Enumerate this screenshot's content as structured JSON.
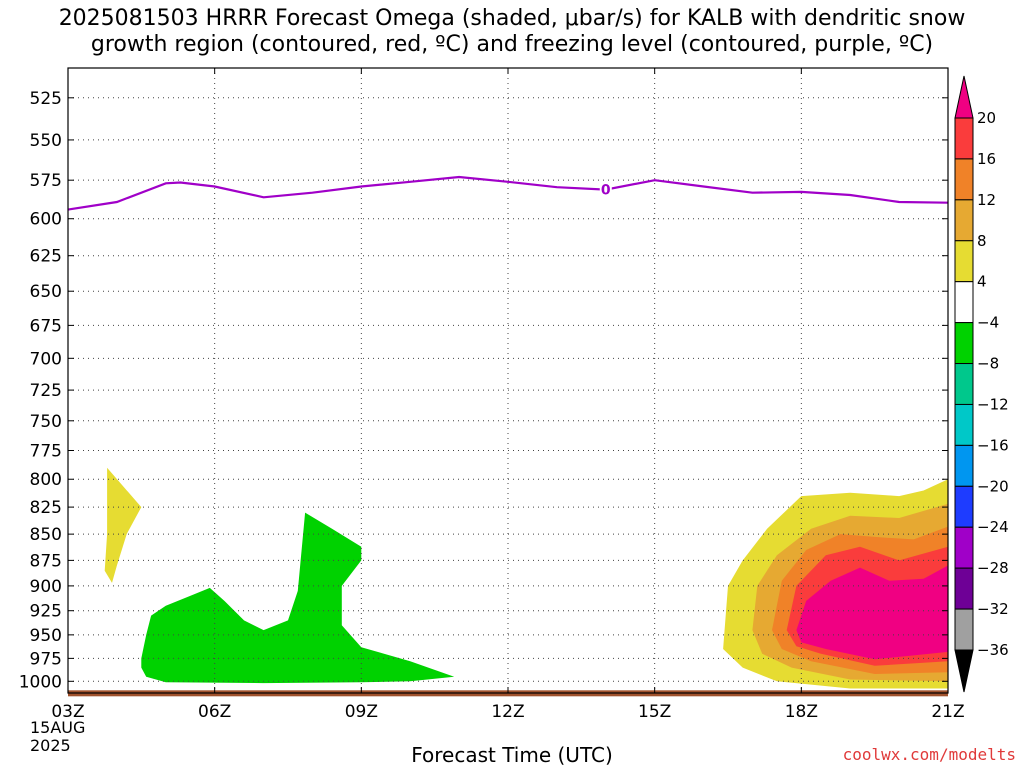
{
  "title_line1": "2025081503 HRRR Forecast Omega (shaded, μbar/s) for KALB with dendritic snow",
  "title_line2": "growth region (contoured, red, ºC) and freezing level (contoured, purple, ºC)",
  "xlabel": "Forecast Time (UTC)",
  "credit": "coolwx.com/modelts",
  "date_line1": "15AUG",
  "date_line2": "2025",
  "chart_data": {
    "type": "area",
    "x_ticks": [
      "03Z",
      "06Z",
      "09Z",
      "12Z",
      "15Z",
      "18Z",
      "21Z"
    ],
    "x_tick_hours": [
      3,
      6,
      9,
      12,
      15,
      18,
      21
    ],
    "xlim": [
      3,
      21
    ],
    "y_ticks": [
      525,
      550,
      575,
      600,
      625,
      650,
      675,
      700,
      725,
      750,
      775,
      800,
      825,
      850,
      875,
      900,
      925,
      950,
      975,
      1000
    ],
    "ylim": [
      1013,
      508
    ],
    "yscale": "log-pressure",
    "grid": true,
    "freezing_level": {
      "label": "0",
      "label_hour": 14,
      "color": "#a000c8",
      "points": [
        [
          3,
          594
        ],
        [
          4,
          589
        ],
        [
          5,
          577
        ],
        [
          5.3,
          576.5
        ],
        [
          6,
          579
        ],
        [
          7,
          586
        ],
        [
          8,
          583
        ],
        [
          9,
          579
        ],
        [
          10,
          576
        ],
        [
          11,
          573
        ],
        [
          12,
          576
        ],
        [
          13,
          579.5
        ],
        [
          14,
          581
        ],
        [
          15,
          575
        ],
        [
          16,
          579
        ],
        [
          17,
          583
        ],
        [
          18,
          582.5
        ],
        [
          19,
          584.5
        ],
        [
          20,
          589
        ],
        [
          21,
          589.5
        ]
      ]
    },
    "surface": {
      "pressure": 1010,
      "color": "#a0522d"
    },
    "omega_regions": [
      {
        "value": 6,
        "color": "#e6dc32",
        "points": [
          [
            3.8,
            790
          ],
          [
            4.5,
            825
          ],
          [
            4.2,
            850
          ],
          [
            4.0,
            880
          ],
          [
            3.9,
            897
          ],
          [
            3.75,
            885
          ],
          [
            3.8,
            850
          ]
        ]
      },
      {
        "value": -6,
        "color": "#00d200",
        "points": [
          [
            4.5,
            975
          ],
          [
            4.6,
            950
          ],
          [
            4.7,
            930
          ],
          [
            5.0,
            920
          ],
          [
            5.5,
            910
          ],
          [
            5.9,
            902
          ],
          [
            6.2,
            915
          ],
          [
            6.6,
            935
          ],
          [
            7.0,
            945
          ],
          [
            7.5,
            935
          ],
          [
            7.7,
            905
          ],
          [
            7.85,
            830
          ],
          [
            8.4,
            845
          ],
          [
            9.0,
            862
          ],
          [
            9.0,
            875
          ],
          [
            8.6,
            900
          ],
          [
            8.6,
            940
          ],
          [
            9.0,
            963
          ],
          [
            10.0,
            978
          ],
          [
            10.9,
            995
          ],
          [
            10.0,
            1000
          ],
          [
            9.0,
            1001
          ],
          [
            7.0,
            1002
          ],
          [
            5.0,
            1001
          ],
          [
            4.6,
            995
          ],
          [
            4.5,
            985
          ]
        ]
      },
      {
        "value": 6,
        "color": "#e6dc32",
        "points": [
          [
            16.4,
            965
          ],
          [
            16.5,
            900
          ],
          [
            16.8,
            875
          ],
          [
            17.3,
            845
          ],
          [
            18.0,
            815
          ],
          [
            19.0,
            812
          ],
          [
            20.0,
            815
          ],
          [
            20.5,
            810
          ],
          [
            21.0,
            800
          ],
          [
            21.0,
            1008
          ],
          [
            19.0,
            1008
          ],
          [
            17.5,
            1000
          ],
          [
            16.8,
            985
          ]
        ]
      },
      {
        "value": 10,
        "color": "#e6a932",
        "points": [
          [
            17.0,
            945
          ],
          [
            17.1,
            900
          ],
          [
            17.5,
            870
          ],
          [
            18.2,
            845
          ],
          [
            19.0,
            833
          ],
          [
            20.0,
            835
          ],
          [
            21.0,
            822
          ],
          [
            21.0,
            1000
          ],
          [
            19.0,
            998
          ],
          [
            17.8,
            985
          ],
          [
            17.2,
            970
          ]
        ]
      },
      {
        "value": 14,
        "color": "#f08228",
        "points": [
          [
            17.4,
            945
          ],
          [
            17.6,
            895
          ],
          [
            18.1,
            865
          ],
          [
            18.8,
            850
          ],
          [
            19.6,
            853
          ],
          [
            20.3,
            855
          ],
          [
            21.0,
            843
          ],
          [
            21.0,
            990
          ],
          [
            19.5,
            992
          ],
          [
            18.2,
            978
          ],
          [
            17.6,
            965
          ]
        ]
      },
      {
        "value": 18,
        "color": "#fa3c3c",
        "points": [
          [
            17.7,
            945
          ],
          [
            17.9,
            900
          ],
          [
            18.5,
            870
          ],
          [
            19.2,
            862
          ],
          [
            20.0,
            875
          ],
          [
            21.0,
            862
          ],
          [
            21.0,
            978
          ],
          [
            19.5,
            983
          ],
          [
            18.4,
            970
          ],
          [
            17.9,
            962
          ]
        ]
      },
      {
        "value": 22,
        "color": "#f00082",
        "points": [
          [
            17.9,
            945
          ],
          [
            18.1,
            915
          ],
          [
            18.6,
            895
          ],
          [
            19.2,
            882
          ],
          [
            19.8,
            895
          ],
          [
            20.5,
            893
          ],
          [
            21.0,
            880
          ],
          [
            21.0,
            968
          ],
          [
            19.5,
            976
          ],
          [
            18.5,
            965
          ],
          [
            18.0,
            958
          ]
        ]
      }
    ],
    "colorbar": {
      "levels": [
        20,
        16,
        12,
        8,
        4,
        -4,
        -8,
        -12,
        -16,
        -20,
        -24,
        -28,
        -32,
        -36
      ],
      "colors": [
        "#f00082",
        "#fa3c3c",
        "#f08228",
        "#e6a932",
        "#e6dc32",
        "#ffffff",
        "#00d200",
        "#00c88c",
        "#00c8c8",
        "#0096f0",
        "#1e3cff",
        "#a000c8",
        "#6e0096",
        "#a0a0a0"
      ],
      "over_color": "#f00082",
      "under_color": "#000000"
    }
  }
}
